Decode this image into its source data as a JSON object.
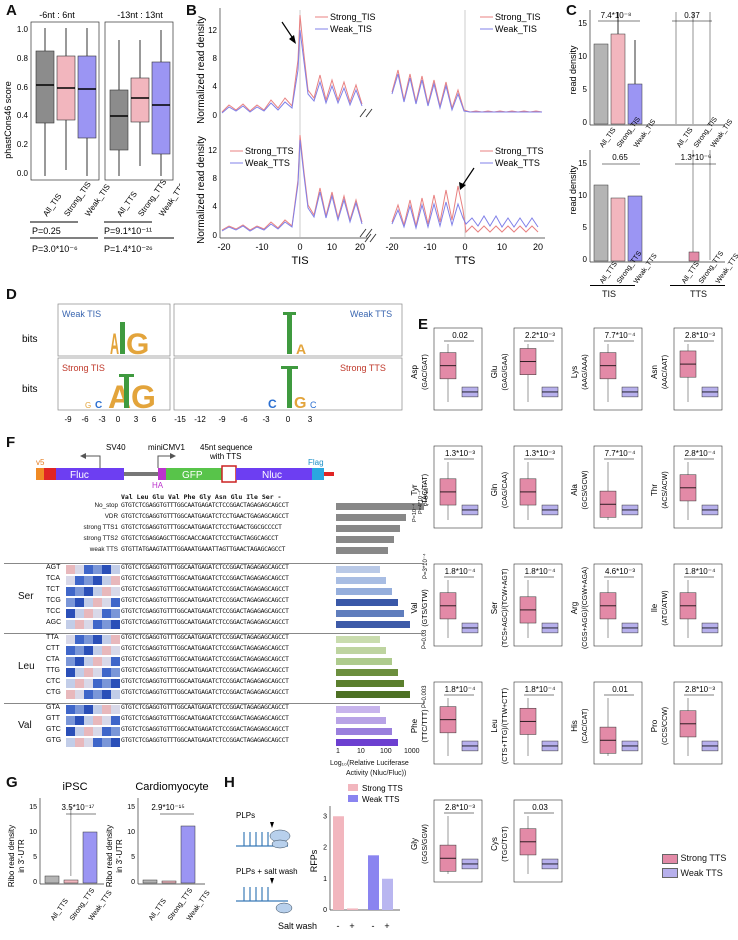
{
  "panel_labels": [
    "A",
    "B",
    "C",
    "D",
    "E",
    "F",
    "G",
    "H"
  ],
  "colors": {
    "all": "#b4b4b4",
    "strong": "#f2b6be",
    "weak": "#9b95f3",
    "strong_line": "#e88080",
    "weak_line": "#8080e8",
    "box_strong": "#e38aa7",
    "box_weak": "#b7b0ec"
  },
  "panelA": {
    "ylabel": "phastCons46 score",
    "left": {
      "title": "-6nt : 6nt",
      "categories": [
        "All_TIS",
        "Strong_TIS",
        "Weak_TIS"
      ]
    },
    "right": {
      "title": "-13nt : 13nt",
      "categories": [
        "All_TTS",
        "Strong_TTS",
        "Weak_TTS"
      ]
    },
    "yticks": [
      "0.0",
      "0.2",
      "0.4",
      "0.6",
      "0.8",
      "1.0"
    ],
    "pvals": [
      "P=0.25",
      "P=3.0*10⁻⁶",
      "P=9.1*10⁻¹¹",
      "P=1.4*10⁻²⁶"
    ]
  },
  "panelB": {
    "ylabel": "Normalized read density",
    "legend_top_left": [
      "Strong_TIS",
      "Weak_TIS"
    ],
    "legend_top_right": [
      "Strong_TIS",
      "Weak_TIS"
    ],
    "legend_bot_left": [
      "Strong_TTS",
      "Weak_TTS"
    ],
    "legend_bot_right": [
      "Strong_TTS",
      "Weak_TTS"
    ],
    "yticks_top": [
      "0",
      "4",
      "8",
      "12"
    ],
    "yticks_bot": [
      "0",
      "4",
      "8",
      "12"
    ],
    "xticks": [
      "-20",
      "-10",
      "0",
      "10",
      "20"
    ],
    "xlabel_left": "TIS",
    "xlabel_right": "TTS"
  },
  "panelC": {
    "ylabel": "read density",
    "top_p": [
      "7.4*10⁻⁸",
      "0.37"
    ],
    "bot_p": [
      "0.65",
      "1.3*10⁻⁶"
    ],
    "yticks": [
      "0",
      "5",
      "10",
      "15"
    ],
    "cats_left": [
      "All_TIS",
      "Strong_TIS",
      "Weak_TIS"
    ],
    "cats_right": [
      "All_TIS",
      "Strong_TIS",
      "Weak_TIS"
    ],
    "cats_bot_left": [
      "All_TTS",
      "Strong_TTS",
      "Weak_TTS"
    ],
    "cats_bot_right": [
      "All_TTS",
      "Strong_TTS",
      "Weak_TTS"
    ],
    "group_top": [
      "TIS",
      "TTS"
    ],
    "group_bot": [
      "TIS",
      "TTS"
    ]
  },
  "panelD": {
    "ylabel": "bits",
    "labels": [
      "Weak TIS",
      "Weak TTS",
      "Strong TIS",
      "Strong TTS"
    ],
    "xticks_left": [
      "-9",
      "-6",
      "-3",
      "0",
      "3",
      "6"
    ],
    "xticks_right": [
      "-15",
      "-12",
      "-9",
      "-6",
      "-3",
      "0",
      "3"
    ]
  },
  "panelE": {
    "boxes": [
      {
        "aa": "Asp",
        "codon": "(GAC/GAT)",
        "p": "0.02"
      },
      {
        "aa": "Glu",
        "codon": "(GAG/GAA)",
        "p": "2.2*10⁻³"
      },
      {
        "aa": "Lys",
        "codon": "(AAG/AAA)",
        "p": "7.7*10⁻⁴"
      },
      {
        "aa": "Asn",
        "codon": "(AAC/AAT)",
        "p": "2.8*10⁻³"
      },
      {
        "aa": "Tyr",
        "codon": "(TAC/TAT)",
        "p": "1.3*10⁻³"
      },
      {
        "aa": "Gln",
        "codon": "(CAG/CAA)",
        "p": "1.3*10⁻³"
      },
      {
        "aa": "Ala",
        "codon": "(GCS/GCW)",
        "p": "7.7*10⁻⁴"
      },
      {
        "aa": "Thr",
        "codon": "(ACS/ACW)",
        "p": "2.8*10⁻⁴"
      },
      {
        "aa": "Val",
        "codon": "(GTS/GTW)",
        "p": "1.8*10⁻⁴"
      },
      {
        "aa": "Ser",
        "codon": "(TCS+AGC)/(TCW+AGT)",
        "p": "1.8*10⁻⁴"
      },
      {
        "aa": "Arg",
        "codon": "(CGS+AGG)/(CGW+AGA)",
        "p": "4.6*10⁻³"
      },
      {
        "aa": "Ile",
        "codon": "(ATC/ATW)",
        "p": "1.8*10⁻⁴"
      },
      {
        "aa": "Phe",
        "codon": "(TTC/TTT)",
        "p": "1.8*10⁻⁴"
      },
      {
        "aa": "Leu",
        "codon": "(CTS+TTG)/(TTW+CTT)",
        "p": "1.8*10⁻⁴"
      },
      {
        "aa": "His",
        "codon": "(CAC/CAT)",
        "p": "0.01"
      },
      {
        "aa": "Pro",
        "codon": "(CCS/CCW)",
        "p": "2.8*10⁻³"
      },
      {
        "aa": "Gly",
        "codon": "(GGS/GGW)",
        "p": "2.8*10⁻³"
      },
      {
        "aa": "Cys",
        "codon": "(TGC/TGT)",
        "p": "0.03"
      }
    ],
    "legend": [
      "Strong TTS",
      "Weak TTS"
    ]
  },
  "panelF": {
    "construct": {
      "v5": "v5",
      "fluc": "Fluc",
      "sv40": "SV40",
      "cmv": "miniCMV1",
      "seq": "45nt sequence",
      "seq2": "with TTS",
      "gfp": "GFP",
      "nluc": "Nluc",
      "flag": "Flag",
      "ha": "HA"
    },
    "aa_header": "Val Leu Glu Val Phe Gly Asn Glu Ile Ser -",
    "top_rows": [
      {
        "label": "No_stop",
        "seq": "GTGTCTCGAGGTGTTTGGCAATGAGATCTCCGGACTAGAGAGCAGCCT"
      },
      {
        "label": "VDR",
        "seq": "GTGTCTCGAGGTGTTTGGCAATGAGATCTCCTGAACTGAGAGCAGCCT"
      },
      {
        "label": "strong TTS1",
        "seq": "GTGTCTCGAGGTGTTTGGCAATGAGATCTCCTGAACTGGCGCCCCT"
      },
      {
        "label": "strong TTS2",
        "seq": "GTGTCTCGAGGAGCTTGGCAACCAGATCTCCTGACTAGGCAGCCT"
      },
      {
        "label": "weak TTS",
        "seq": "GTGTTATGAAGTATTTGGAAATGAAATTAGTTGAACTAGAGCAGCCT"
      }
    ],
    "groups": [
      {
        "name": "Ser",
        "codons": [
          "AGT",
          "TCA",
          "TCT",
          "TCG",
          "TCC",
          "AGC"
        ],
        "p": "P=3*10⁻⁴"
      },
      {
        "name": "Leu",
        "codons": [
          "TTA",
          "CTT",
          "CTA",
          "TTG",
          "CTC",
          "CTG"
        ],
        "p": "P=0.03"
      },
      {
        "name": "Val",
        "codons": [
          "GTA",
          "GTT",
          "GTC",
          "GTG"
        ],
        "p": "P=0.003"
      }
    ],
    "top_p": [
      "P=6*10⁻⁵",
      "P=4*10⁻⁴",
      "P=10⁻⁴"
    ],
    "xticks": [
      "1",
      "10",
      "100",
      "1000"
    ],
    "xlabel1": "Log₁₀(Relative Luciferase",
    "xlabel2": "Activity (Nluc/Fluc))"
  },
  "panelG": {
    "titles": [
      "iPSC",
      "Cardiomyocyte"
    ],
    "ylabel1": "Ribo read density",
    "ylabel2": "in 3'-UTR",
    "p": [
      "3.5*10⁻¹⁷",
      "2.9*10⁻¹⁵"
    ],
    "yticks": [
      "0",
      "5",
      "10",
      "15"
    ],
    "cats": [
      "All_TTS",
      "Strong_TTS",
      "Weak_TTS"
    ]
  },
  "panelH": {
    "legend": [
      "Strong TTS",
      "Weak TTS"
    ],
    "labels": [
      "PLPs",
      "PLPs + salt wash"
    ],
    "ylabel": "RFPs",
    "yticks": [
      "0",
      "1",
      "2",
      "3"
    ],
    "xlabel": "Salt wash",
    "xticks": [
      "-",
      "+",
      "-",
      "+"
    ],
    "chart_data": {
      "type": "bar",
      "categories": [
        "Strong TTS -",
        "Strong TTS +",
        "Weak TTS -",
        "Weak TTS +"
      ],
      "values": [
        3.0,
        0.05,
        1.75,
        1.0
      ],
      "ylim": [
        0,
        3.2
      ]
    }
  }
}
